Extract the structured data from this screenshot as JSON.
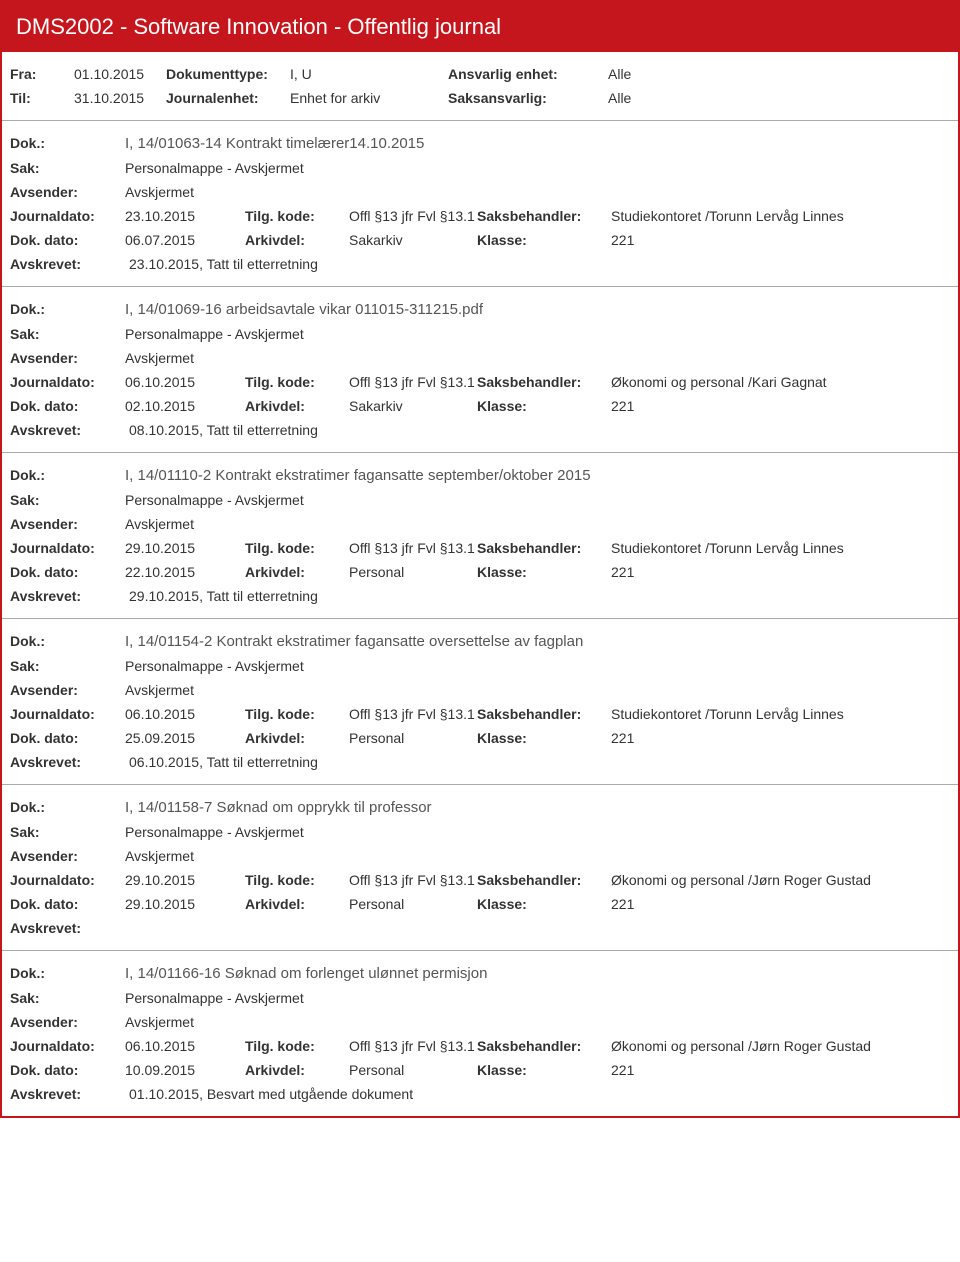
{
  "header": {
    "title": "DMS2002 - Software Innovation - Offentlig journal"
  },
  "filters": {
    "fra_label": "Fra:",
    "fra_value": "01.10.2015",
    "til_label": "Til:",
    "til_value": "31.10.2015",
    "doktype_label": "Dokumenttype:",
    "doktype_value": "I, U",
    "journalenhet_label": "Journalenhet:",
    "journalenhet_value": "Enhet for arkiv",
    "ansvarlig_label": "Ansvarlig enhet:",
    "ansvarlig_value": "Alle",
    "saksansvarlig_label": "Saksansvarlig:",
    "saksansvarlig_value": "Alle"
  },
  "labels": {
    "dok": "Dok.:",
    "sak": "Sak:",
    "avsender": "Avsender:",
    "journaldato": "Journaldato:",
    "tilgkode": "Tilg. kode:",
    "saksbehandler": "Saksbehandler:",
    "dokdato": "Dok. dato:",
    "arkivdel": "Arkivdel:",
    "klasse": "Klasse:",
    "avskrevet": "Avskrevet:"
  },
  "entries": [
    {
      "dok": "I, 14/01063-14 Kontrakt timelærer14.10.2015",
      "sak": "Personalmappe - Avskjermet",
      "avsender": "Avskjermet",
      "journaldato": "23.10.2015",
      "tilgkode": "Offl §13 jfr Fvl §13.1",
      "saksbehandler": "Studiekontoret /Torunn Lervåg Linnes",
      "dokdato": "06.07.2015",
      "arkivdel": "Sakarkiv",
      "klasse": "221",
      "avskrevet": "23.10.2015, Tatt til etterretning"
    },
    {
      "dok": "I, 14/01069-16 arbeidsavtale vikar 011015-311215.pdf",
      "sak": "Personalmappe - Avskjermet",
      "avsender": "Avskjermet",
      "journaldato": "06.10.2015",
      "tilgkode": "Offl §13 jfr Fvl §13.1",
      "saksbehandler": "Økonomi og personal /Kari Gagnat",
      "dokdato": "02.10.2015",
      "arkivdel": "Sakarkiv",
      "klasse": "221",
      "avskrevet": "08.10.2015, Tatt til etterretning"
    },
    {
      "dok": "I, 14/01110-2 Kontrakt ekstratimer fagansatte september/oktober 2015",
      "sak": "Personalmappe - Avskjermet",
      "avsender": "Avskjermet",
      "journaldato": "29.10.2015",
      "tilgkode": "Offl §13 jfr Fvl §13.1",
      "saksbehandler": "Studiekontoret /Torunn Lervåg Linnes",
      "dokdato": "22.10.2015",
      "arkivdel": "Personal",
      "klasse": "221",
      "avskrevet": "29.10.2015, Tatt til etterretning"
    },
    {
      "dok": "I, 14/01154-2 Kontrakt ekstratimer fagansatte oversettelse av fagplan",
      "sak": "Personalmappe - Avskjermet",
      "avsender": "Avskjermet",
      "journaldato": "06.10.2015",
      "tilgkode": "Offl §13 jfr Fvl §13.1",
      "saksbehandler": "Studiekontoret /Torunn Lervåg Linnes",
      "dokdato": "25.09.2015",
      "arkivdel": "Personal",
      "klasse": "221",
      "avskrevet": "06.10.2015, Tatt til etterretning"
    },
    {
      "dok": "I, 14/01158-7 Søknad om opprykk til professor",
      "sak": "Personalmappe - Avskjermet",
      "avsender": "Avskjermet",
      "journaldato": "29.10.2015",
      "tilgkode": "Offl §13 jfr Fvl §13.1",
      "saksbehandler": "Økonomi og personal /Jørn Roger Gustad",
      "dokdato": "29.10.2015",
      "arkivdel": "Personal",
      "klasse": "221",
      "avskrevet": ""
    },
    {
      "dok": "I, 14/01166-16 Søknad om forlenget ulønnet permisjon",
      "sak": "Personalmappe - Avskjermet",
      "avsender": "Avskjermet",
      "journaldato": "06.10.2015",
      "tilgkode": "Offl §13 jfr Fvl §13.1",
      "saksbehandler": "Økonomi og personal /Jørn Roger Gustad",
      "dokdato": "10.09.2015",
      "arkivdel": "Personal",
      "klasse": "221",
      "avskrevet": "01.10.2015, Besvart med utgående dokument"
    }
  ]
}
